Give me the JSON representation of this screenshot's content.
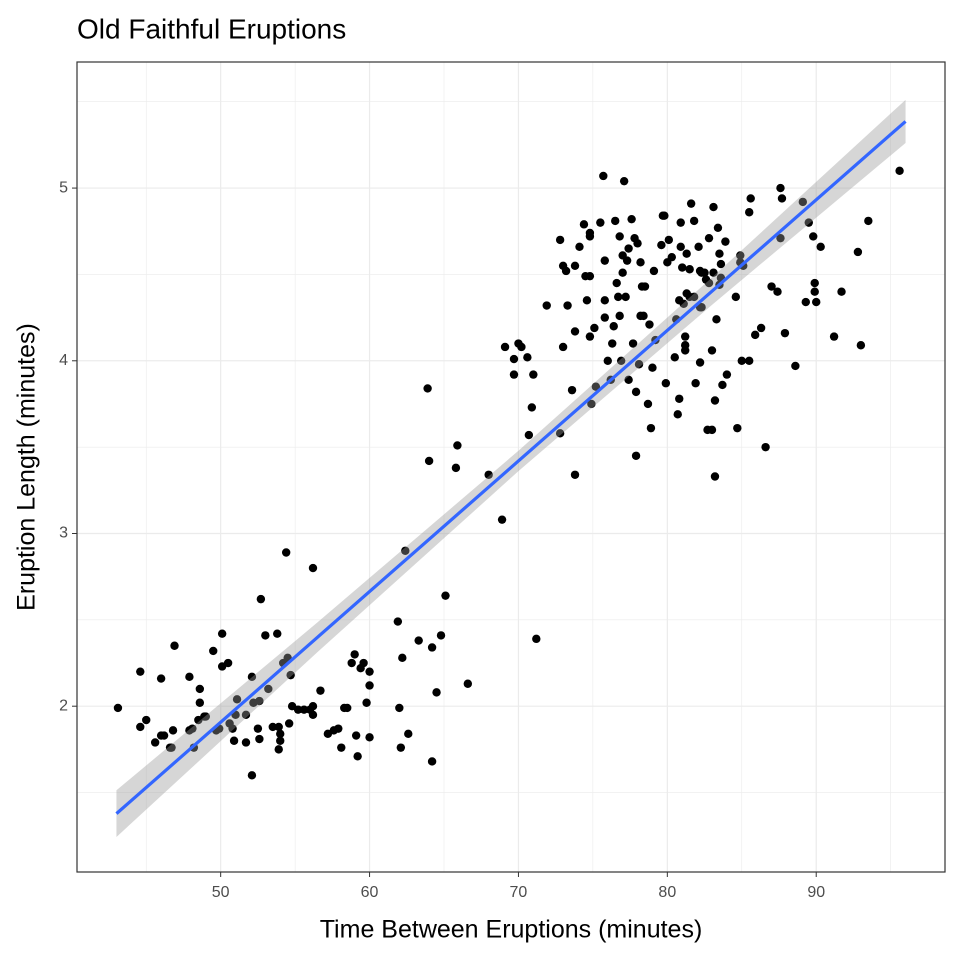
{
  "chart_data": {
    "type": "scatter",
    "title": "Old Faithful Eruptions",
    "x_label": "Time Between Eruptions (minutes)",
    "y_label": "Eruption Length (minutes)",
    "color": "#000000",
    "xlim": [
      40.35,
      98.65
    ],
    "ylim": [
      1.04,
      5.73
    ],
    "xticks": [
      50,
      60,
      70,
      80,
      90
    ],
    "yticks": [
      2,
      3,
      4,
      5
    ],
    "xminor": [
      45,
      55,
      65,
      75,
      85,
      95
    ],
    "yminor": [
      1.5,
      2.5,
      3.5,
      4.5,
      5.5
    ],
    "grid": true,
    "x": [
      43.1,
      44.6,
      44.6,
      45.0,
      45.6,
      46.0,
      46.0,
      46.2,
      46.6,
      46.7,
      46.8,
      46.9,
      47.9,
      47.9,
      48.1,
      48.2,
      48.5,
      48.6,
      48.6,
      48.9,
      49.0,
      49.5,
      49.7,
      49.9,
      50.1,
      50.1,
      50.5,
      50.6,
      50.8,
      50.9,
      51.0,
      51.1,
      51.7,
      51.7,
      52.1,
      52.1,
      52.2,
      52.5,
      52.6,
      52.6,
      52.7,
      53.0,
      53.2,
      53.5,
      53.8,
      53.9,
      53.9,
      54.0,
      54.0,
      54.2,
      54.4,
      54.5,
      54.6,
      54.7,
      54.8,
      55.2,
      55.6,
      56.0,
      56.2,
      56.2,
      56.2,
      56.7,
      57.2,
      57.6,
      57.9,
      58.1,
      58.3,
      58.5,
      58.8,
      59.0,
      59.1,
      59.2,
      59.4,
      59.6,
      59.8,
      60.0,
      60.0,
      60.0,
      61.9,
      62.0,
      62.1,
      62.2,
      62.4,
      62.6,
      63.3,
      64.2,
      64.2,
      64.5,
      64.8,
      65.1,
      66.6,
      63.9,
      64.0,
      65.9,
      65.8,
      68.0,
      68.9,
      69.1,
      69.7,
      69.7,
      70.0,
      70.2,
      70.6,
      70.7,
      70.9,
      71.0,
      71.2,
      71.9,
      72.8,
      72.8,
      73.0,
      73.0,
      73.2,
      73.3,
      73.6,
      73.8,
      73.8,
      73.8,
      74.1,
      74.4,
      74.5,
      74.6,
      74.8,
      74.8,
      74.8,
      74.8,
      74.9,
      75.1,
      75.2,
      75.5,
      75.7,
      75.8,
      75.8,
      75.8,
      76.0,
      76.2,
      76.3,
      76.4,
      76.5,
      76.6,
      76.7,
      76.8,
      76.8,
      76.9,
      77.0,
      77.0,
      77.1,
      77.2,
      77.3,
      77.4,
      77.4,
      77.6,
      77.7,
      77.8,
      77.9,
      77.9,
      78.0,
      78.1,
      78.2,
      78.2,
      78.3,
      78.4,
      78.5,
      78.7,
      78.8,
      78.9,
      79.0,
      79.1,
      79.2,
      79.6,
      79.7,
      79.8,
      79.9,
      80.0,
      80.1,
      80.3,
      80.5,
      80.6,
      80.7,
      80.8,
      80.8,
      80.9,
      80.9,
      81.0,
      81.1,
      81.2,
      81.2,
      81.2,
      81.3,
      81.3,
      81.5,
      81.5,
      81.6,
      81.8,
      81.8,
      81.9,
      82.1,
      82.2,
      82.2,
      82.2,
      82.3,
      82.3,
      82.5,
      82.6,
      82.7,
      82.8,
      82.8,
      83.0,
      83.0,
      83.1,
      83.1,
      83.2,
      83.2,
      83.3,
      83.4,
      83.5,
      83.5,
      83.6,
      83.6,
      83.7,
      83.9,
      84.0,
      84.6,
      84.7,
      84.9,
      84.9,
      85.0,
      85.1,
      85.5,
      85.5,
      85.6,
      85.9,
      86.3,
      86.6,
      87.0,
      87.4,
      87.6,
      87.6,
      87.7,
      87.9,
      88.6,
      89.1,
      89.3,
      89.5,
      89.8,
      89.9,
      90.0,
      89.9,
      90.3,
      91.2,
      91.7,
      92.8,
      93.0,
      93.5,
      95.6
    ],
    "values": [
      1.99,
      2.2,
      1.88,
      1.92,
      1.79,
      2.16,
      1.83,
      1.83,
      1.76,
      1.76,
      1.86,
      2.35,
      2.17,
      1.86,
      1.87,
      1.76,
      1.92,
      2.1,
      2.02,
      1.94,
      1.94,
      2.32,
      1.86,
      1.87,
      2.42,
      2.23,
      2.25,
      1.9,
      1.87,
      1.8,
      1.95,
      2.04,
      1.79,
      1.95,
      1.6,
      2.17,
      2.02,
      1.87,
      1.81,
      2.03,
      2.62,
      2.41,
      2.1,
      1.88,
      2.42,
      1.88,
      1.75,
      1.84,
      1.8,
      2.25,
      2.89,
      2.28,
      1.9,
      2.18,
      2.0,
      1.98,
      1.98,
      1.98,
      2.0,
      2.8,
      1.95,
      2.09,
      1.84,
      1.86,
      1.87,
      1.76,
      1.99,
      1.99,
      2.25,
      2.3,
      1.83,
      1.71,
      2.22,
      2.25,
      2.02,
      2.12,
      1.82,
      2.2,
      2.49,
      1.99,
      1.76,
      2.28,
      2.9,
      1.84,
      2.38,
      1.68,
      2.34,
      2.08,
      2.41,
      2.64,
      2.13,
      3.84,
      3.42,
      3.51,
      3.38,
      3.34,
      3.08,
      4.08,
      4.01,
      3.92,
      4.1,
      4.08,
      4.02,
      3.57,
      3.73,
      3.92,
      2.39,
      4.32,
      4.7,
      3.58,
      4.55,
      4.08,
      4.52,
      4.32,
      3.83,
      4.55,
      3.34,
      4.17,
      4.66,
      4.79,
      4.49,
      4.35,
      4.72,
      4.74,
      4.49,
      4.14,
      3.75,
      4.19,
      3.85,
      4.8,
      5.07,
      4.58,
      4.35,
      4.25,
      4.0,
      3.89,
      4.1,
      4.2,
      4.81,
      4.45,
      4.37,
      4.72,
      4.26,
      4.0,
      4.61,
      4.51,
      5.04,
      4.37,
      4.58,
      4.65,
      3.89,
      4.82,
      4.1,
      4.71,
      3.45,
      3.82,
      4.68,
      3.98,
      4.57,
      4.26,
      4.43,
      4.26,
      4.43,
      3.75,
      4.21,
      3.61,
      3.96,
      4.52,
      4.12,
      4.67,
      4.84,
      4.84,
      3.87,
      4.57,
      4.7,
      4.6,
      4.02,
      4.24,
      3.69,
      3.78,
      4.35,
      4.66,
      4.8,
      4.54,
      4.33,
      4.14,
      4.06,
      4.09,
      4.62,
      4.39,
      4.37,
      4.53,
      4.91,
      4.81,
      4.37,
      3.87,
      4.66,
      4.52,
      4.31,
      3.99,
      4.51,
      4.31,
      4.51,
      4.47,
      3.6,
      4.71,
      4.45,
      3.6,
      4.06,
      4.89,
      4.51,
      3.77,
      3.33,
      4.24,
      4.77,
      4.44,
      4.62,
      4.48,
      4.56,
      3.86,
      4.69,
      3.92,
      4.37,
      3.61,
      4.57,
      4.61,
      4.0,
      4.55,
      4.0,
      4.86,
      4.94,
      4.15,
      4.19,
      3.5,
      4.43,
      4.4,
      4.71,
      5.0,
      4.94,
      4.16,
      3.97,
      4.92,
      4.34,
      4.8,
      4.72,
      4.45,
      4.34,
      4.4,
      4.66,
      4.14,
      4.4,
      4.63,
      4.09,
      4.81,
      5.1
    ],
    "trend": {
      "color": "#3366ff",
      "band_color": "#999999",
      "x": [
        43,
        56.5,
        70,
        83,
        96
      ],
      "y": [
        1.378,
        2.399,
        3.42,
        4.403,
        5.386
      ],
      "lower": [
        1.243,
        2.313,
        3.361,
        4.324,
        5.261
      ],
      "upper": [
        1.513,
        2.485,
        3.479,
        4.482,
        5.511
      ]
    }
  }
}
